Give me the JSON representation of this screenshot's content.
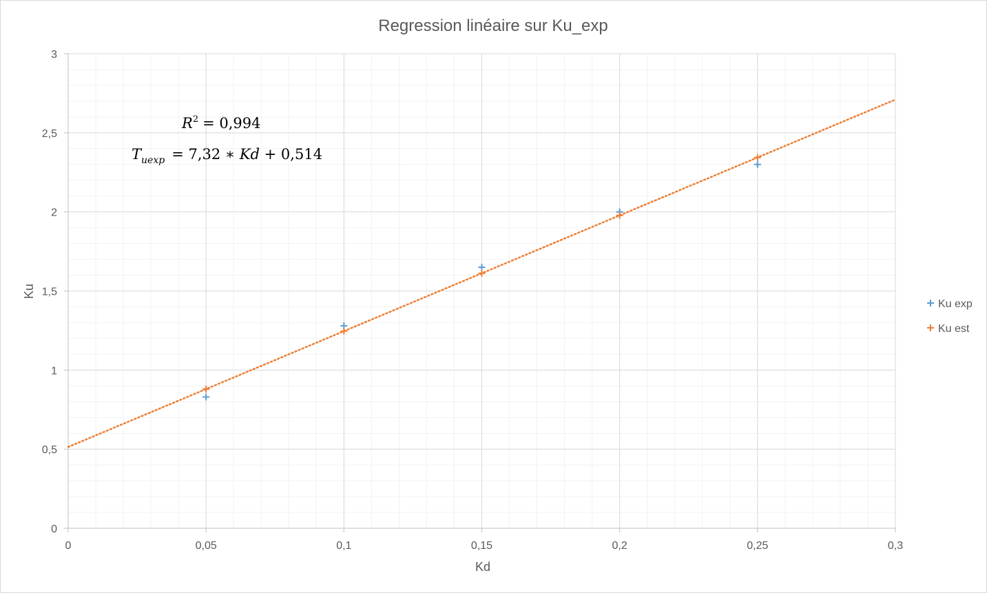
{
  "chart_data": {
    "type": "scatter",
    "title": "Regression linéaire sur Ku_exp",
    "xlabel": "Kd",
    "ylabel": "Ku",
    "xlim": [
      0,
      0.3
    ],
    "ylim": [
      0,
      3
    ],
    "x_ticks": [
      "0",
      "0,05",
      "0,1",
      "0,15",
      "0,2",
      "0,25",
      "0,3"
    ],
    "y_ticks": [
      "0",
      "0,5",
      "1",
      "1,5",
      "2",
      "2,5",
      "3"
    ],
    "x_tick_values": [
      0,
      0.05,
      0.1,
      0.15,
      0.2,
      0.25,
      0.3
    ],
    "y_tick_values": [
      0,
      0.5,
      1,
      1.5,
      2,
      2.5,
      3
    ],
    "grid": true,
    "minor_grid": true,
    "legend_position": "right",
    "series": [
      {
        "name": "Ku exp",
        "color": "#5b9bd5",
        "marker": "plus",
        "x": [
          0.05,
          0.1,
          0.15,
          0.2,
          0.25
        ],
        "y": [
          0.83,
          1.28,
          1.65,
          2.0,
          2.3
        ]
      },
      {
        "name": "Ku est",
        "color": "#ed7d31",
        "marker": "plus",
        "x": [
          0.05,
          0.1,
          0.15,
          0.2,
          0.25
        ],
        "y": [
          0.88,
          1.246,
          1.612,
          1.978,
          2.344
        ]
      }
    ],
    "trendline": {
      "color": "#ed7d31",
      "style": "dotted",
      "slope": 7.32,
      "intercept": 0.514,
      "x_range": [
        0,
        0.3
      ]
    },
    "annotations": {
      "r2_lhs_base": "R",
      "r2_lhs_sup": "2",
      "r2_rhs": "= 0,994",
      "eq_lhs_base": "T",
      "eq_lhs_sub": "uexp",
      "eq_rhs_1": "= 7,32 ∗ ",
      "eq_rhs_var": "Kd",
      "eq_rhs_2": " + 0,514"
    }
  }
}
